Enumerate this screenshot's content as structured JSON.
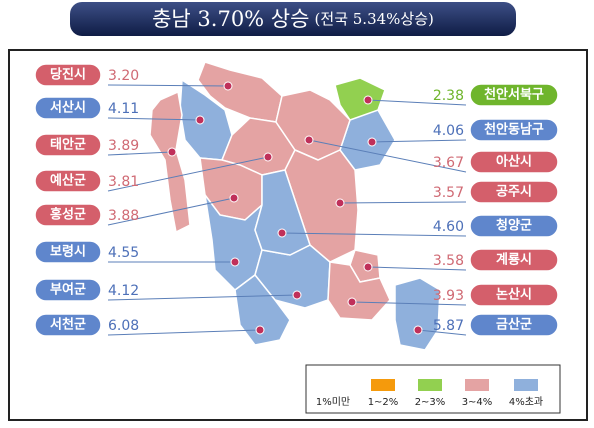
{
  "header": {
    "title": "충남 3.70% 상승",
    "subtitle": "(전국 5.34%상승)"
  },
  "regions": [
    {
      "name": "당진시",
      "value": "3.20",
      "side": "left",
      "color": "#e4a3a3"
    },
    {
      "name": "서산시",
      "value": "4.11",
      "side": "left",
      "color": "#8fb0dc"
    },
    {
      "name": "태안군",
      "value": "3.89",
      "side": "left",
      "color": "#e4a3a3"
    },
    {
      "name": "예산군",
      "value": "3.81",
      "side": "left",
      "color": "#e4a3a3"
    },
    {
      "name": "홍성군",
      "value": "3.88",
      "side": "left",
      "color": "#e4a3a3"
    },
    {
      "name": "보령시",
      "value": "4.55",
      "side": "left",
      "color": "#8fb0dc"
    },
    {
      "name": "부여군",
      "value": "4.12",
      "side": "left",
      "color": "#8fb0dc"
    },
    {
      "name": "서천군",
      "value": "6.08",
      "side": "left",
      "color": "#8fb0dc"
    },
    {
      "name": "천안서북구",
      "value": "2.38",
      "side": "right",
      "color": "#92d050"
    },
    {
      "name": "천안동남구",
      "value": "4.06",
      "side": "right",
      "color": "#8fb0dc"
    },
    {
      "name": "아산시",
      "value": "3.67",
      "side": "right",
      "color": "#e4a3a3"
    },
    {
      "name": "공주시",
      "value": "3.57",
      "side": "right",
      "color": "#e4a3a3"
    },
    {
      "name": "청양군",
      "value": "4.60",
      "side": "right",
      "color": "#8fb0dc"
    },
    {
      "name": "계룡시",
      "value": "3.58",
      "side": "right",
      "color": "#e4a3a3"
    },
    {
      "name": "논산시",
      "value": "3.93",
      "side": "right",
      "color": "#e4a3a3"
    },
    {
      "name": "금산군",
      "value": "5.87",
      "side": "right",
      "color": "#8fb0dc"
    }
  ],
  "legend": [
    {
      "label": "1%미만"
    },
    {
      "label": "1~2%",
      "color": "#f59a0c"
    },
    {
      "label": "2~3%",
      "color": "#92d050"
    },
    {
      "label": "3~4%",
      "color": "#e4a3a3"
    },
    {
      "label": "4%초과",
      "color": "#8fb0dc"
    }
  ]
}
